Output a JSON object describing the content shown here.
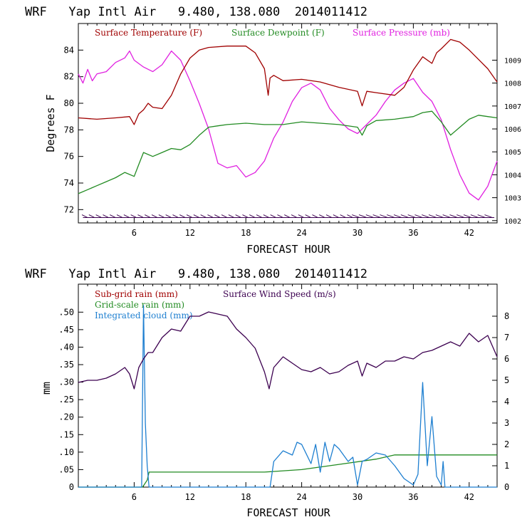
{
  "colors": {
    "temperature": "#a00000",
    "dewpoint": "#228b22",
    "pressure": "#e020e0",
    "subgrid_rain": "#a00000",
    "gridscale_rain": "#228b22",
    "cloud": "#1e7fd0",
    "wind_speed": "#3c0050",
    "barbs": "#3c0050"
  },
  "chart_data": [
    {
      "type": "line",
      "title": "WRF   Yap Intl Air   9.480, 138.080  2014011412",
      "xlabel": "FORECAST HOUR",
      "ylabel": "Degrees F",
      "xlim": [
        0,
        45
      ],
      "ylim": [
        71,
        86
      ],
      "y2lim": [
        1001.9,
        1010.6
      ],
      "xticks": [
        6,
        12,
        18,
        24,
        30,
        36,
        42
      ],
      "yticks": [
        72,
        74,
        76,
        78,
        80,
        82,
        84
      ],
      "y2ticks": [
        1002,
        1003,
        1004,
        1005,
        1006,
        1007,
        1008,
        1009
      ],
      "legend": [
        "Surface Temperature (F)",
        "Surface Dewpoint (F)",
        "Surface Pressure (mb)"
      ],
      "series": [
        {
          "name": "Surface Temperature (F)",
          "axis": "left",
          "x": [
            0,
            2,
            4,
            5.5,
            6,
            6.5,
            7,
            7.5,
            8,
            9,
            10,
            11,
            12,
            13,
            14,
            16,
            18,
            19,
            20,
            20.4,
            20.6,
            21,
            22,
            24,
            26,
            28,
            30,
            30.5,
            31,
            32,
            34,
            35,
            36,
            37,
            38,
            38.5,
            39,
            40,
            41,
            42,
            43,
            44,
            45
          ],
          "values": [
            78.9,
            78.8,
            78.9,
            79.0,
            78.4,
            79.2,
            79.5,
            80.0,
            79.7,
            79.6,
            80.6,
            82.2,
            83.4,
            84.0,
            84.2,
            84.3,
            84.3,
            83.8,
            82.6,
            80.6,
            81.9,
            82.1,
            81.7,
            81.8,
            81.6,
            81.2,
            80.9,
            79.8,
            80.9,
            80.8,
            80.6,
            81.2,
            82.5,
            83.5,
            83.0,
            83.8,
            84.1,
            84.8,
            84.6,
            84.0,
            83.3,
            82.6,
            81.6
          ]
        },
        {
          "name": "Surface Dewpoint (F)",
          "axis": "left",
          "x": [
            0,
            1,
            2,
            3,
            4,
            5,
            6,
            6.5,
            7,
            8,
            9,
            10,
            11,
            12,
            13,
            14,
            15,
            16,
            18,
            20,
            22,
            24,
            26,
            28,
            30,
            30.5,
            31,
            32,
            34,
            36,
            37,
            38,
            39,
            40,
            41,
            42,
            43,
            44,
            45
          ],
          "values": [
            73.2,
            73.5,
            73.8,
            74.1,
            74.4,
            74.8,
            74.5,
            75.4,
            76.3,
            76.0,
            76.3,
            76.6,
            76.5,
            76.9,
            77.6,
            78.2,
            78.3,
            78.4,
            78.5,
            78.4,
            78.4,
            78.6,
            78.5,
            78.4,
            78.2,
            77.6,
            78.3,
            78.7,
            78.8,
            79.0,
            79.3,
            79.4,
            78.6,
            77.6,
            78.2,
            78.8,
            79.1,
            79.0,
            78.9
          ]
        },
        {
          "name": "Surface Pressure (mb)",
          "axis": "right",
          "x": [
            0,
            0.5,
            1,
            1.5,
            2,
            3,
            4,
            5,
            5.5,
            6,
            7,
            8,
            9,
            10,
            11,
            12,
            13,
            14,
            15,
            16,
            17,
            18,
            19,
            20,
            21,
            22,
            23,
            24,
            25,
            26,
            27,
            28,
            29,
            30,
            31,
            32,
            33,
            34,
            35,
            36,
            37,
            38,
            39,
            40,
            41,
            42,
            43,
            44,
            45
          ],
          "values": [
            1008.4,
            1008.0,
            1008.6,
            1008.1,
            1008.4,
            1008.5,
            1008.9,
            1009.1,
            1009.4,
            1009.0,
            1008.7,
            1008.5,
            1008.8,
            1009.4,
            1009.0,
            1008.1,
            1007.1,
            1006.0,
            1004.5,
            1004.3,
            1004.4,
            1003.9,
            1004.1,
            1004.6,
            1005.6,
            1006.3,
            1007.2,
            1007.8,
            1008.0,
            1007.7,
            1006.9,
            1006.4,
            1006.0,
            1005.8,
            1006.2,
            1006.6,
            1007.2,
            1007.7,
            1008.0,
            1008.2,
            1007.6,
            1007.2,
            1006.4,
            1005.1,
            1004.0,
            1003.2,
            1002.9,
            1003.5,
            1004.6
          ]
        }
      ]
    },
    {
      "type": "line",
      "title": "WRF   Yap Intl Air   9.480, 138.080  2014011412",
      "xlabel": "FORECAST HOUR",
      "ylabel": "mm",
      "xlim": [
        0,
        45
      ],
      "ylim": [
        0,
        0.58
      ],
      "y2lim": [
        0,
        9.5
      ],
      "xticks": [
        6,
        12,
        18,
        24,
        30,
        36,
        42
      ],
      "yticks": [
        0,
        0.05,
        0.1,
        0.15,
        0.2,
        0.25,
        0.3,
        0.35,
        0.4,
        0.45,
        0.5
      ],
      "ytick_labels": [
        "0",
        ".05",
        ".10",
        ".15",
        ".20",
        ".25",
        ".30",
        ".35",
        ".40",
        ".45",
        ".50"
      ],
      "y2ticks": [
        0,
        1,
        2,
        3,
        4,
        5,
        6,
        7,
        8
      ],
      "legend": [
        "Sub-grid rain (mm)",
        "Grid-scale rain (mm)",
        "Integrated cloud (mm)",
        "Surface Wind Speed (m/s)"
      ],
      "series": [
        {
          "name": "Surface Wind Speed (m/s)",
          "axis": "right",
          "x": [
            0,
            1,
            2,
            3,
            4,
            5,
            5.5,
            6,
            6.5,
            7,
            7.5,
            8,
            9,
            10,
            11,
            12,
            13,
            14,
            15,
            16,
            17,
            18,
            19,
            20,
            20.5,
            21,
            22,
            23,
            24,
            25,
            26,
            27,
            28,
            29,
            30,
            30.5,
            31,
            32,
            33,
            34,
            35,
            36,
            37,
            38,
            39,
            40,
            41,
            42,
            43,
            44,
            45
          ],
          "values": [
            4.9,
            5.0,
            5.0,
            5.1,
            5.3,
            5.6,
            5.3,
            4.6,
            5.6,
            6.0,
            6.3,
            6.3,
            7.0,
            7.4,
            7.3,
            8.0,
            8.0,
            8.2,
            8.1,
            8.0,
            7.4,
            7.0,
            6.5,
            5.4,
            4.6,
            5.6,
            6.1,
            5.8,
            5.5,
            5.4,
            5.6,
            5.3,
            5.4,
            5.7,
            5.9,
            5.2,
            5.8,
            5.6,
            5.9,
            5.9,
            6.1,
            6.0,
            6.3,
            6.4,
            6.6,
            6.8,
            6.6,
            7.2,
            6.8,
            7.1,
            6.1
          ]
        },
        {
          "name": "Grid-scale rain (mm)",
          "axis": "left",
          "x": [
            0,
            6.9,
            7.4,
            7.6,
            18,
            20,
            24,
            28,
            32,
            34,
            36,
            40,
            45
          ],
          "values": [
            0,
            0,
            0.02,
            0.043,
            0.043,
            0.043,
            0.05,
            0.065,
            0.08,
            0.092,
            0.092,
            0.092,
            0.092
          ]
        },
        {
          "name": "Integrated cloud (mm)",
          "axis": "right",
          "x": [
            0,
            6.8,
            7.0,
            7.2,
            7.4,
            7.6,
            20.6,
            21,
            22,
            23,
            23.5,
            24,
            25,
            25.5,
            26,
            26.5,
            27,
            27.5,
            28,
            28.5,
            29,
            29.5,
            30,
            30.5,
            31,
            32,
            33,
            34,
            35,
            36,
            36.5,
            37,
            37.5,
            38,
            38.5,
            39,
            39.2,
            39.4,
            45
          ],
          "values": [
            0,
            0,
            8.5,
            3.0,
            1.0,
            0,
            0,
            1.2,
            1.7,
            1.5,
            2.1,
            2.0,
            1.1,
            2.0,
            0.7,
            2.1,
            1.2,
            2.0,
            1.8,
            1.5,
            1.2,
            1.4,
            0.1,
            1.2,
            1.3,
            1.6,
            1.5,
            1.0,
            0.4,
            0.1,
            0.6,
            4.9,
            1.0,
            3.3,
            0.5,
            0.1,
            1.2,
            0,
            0
          ]
        }
      ]
    }
  ]
}
